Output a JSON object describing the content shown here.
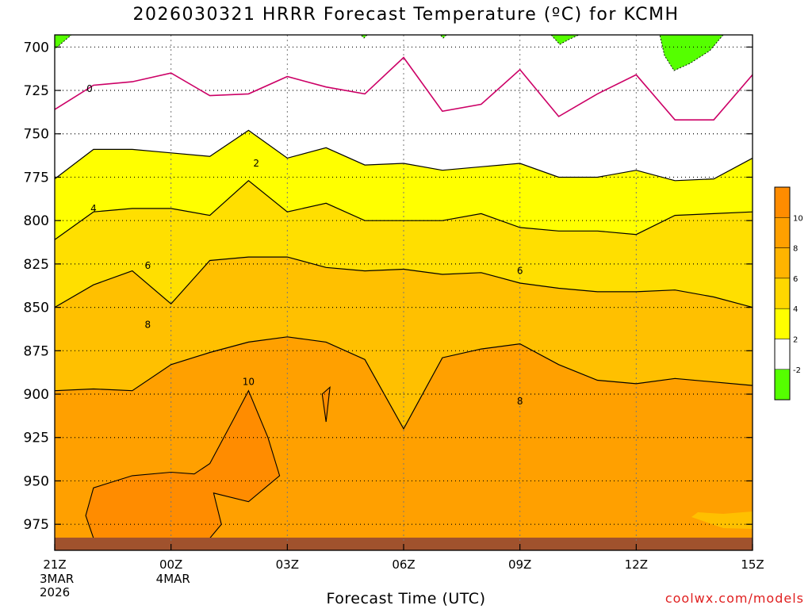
{
  "title": "2026030321 HRRR Forecast Temperature (ºC) for KCMH",
  "credit": "coolwx.com/models",
  "chart_data": {
    "type": "contour",
    "title": "2026030321 HRRR Forecast Temperature (ºC) for KCMH",
    "xlabel": "Forecast Time (UTC)",
    "ylabel": "",
    "x_ticks": [
      {
        "hour": 0,
        "label": "21Z",
        "sub": [
          "3MAR",
          "2026"
        ]
      },
      {
        "hour": 3,
        "label": "00Z",
        "sub": [
          "4MAR"
        ]
      },
      {
        "hour": 6,
        "label": "03Z",
        "sub": []
      },
      {
        "hour": 9,
        "label": "06Z",
        "sub": []
      },
      {
        "hour": 12,
        "label": "09Z",
        "sub": []
      },
      {
        "hour": 15,
        "label": "12Z",
        "sub": []
      },
      {
        "hour": 18,
        "label": "15Z",
        "sub": []
      }
    ],
    "y_ticks": [
      700,
      725,
      750,
      775,
      800,
      825,
      850,
      875,
      900,
      925,
      950,
      975
    ],
    "ylim": [
      990,
      693
    ],
    "xlim": [
      0,
      18
    ],
    "grid": true,
    "contour_levels": [
      -2,
      0,
      2,
      4,
      6,
      8,
      10
    ],
    "colorbar": {
      "labels": [
        "10",
        "8",
        "6",
        "4",
        "2",
        "-2"
      ],
      "colors": [
        "#ff8c00",
        "#ffa000",
        "#ffb400",
        "#ffd700",
        "#ffff00",
        "#ffffff",
        "#55ff00"
      ]
    },
    "colors": {
      "c_lt_neg2": "#55ff00",
      "c_neg2_0": "#ffffff",
      "c_0_2": "#ffffff",
      "c_2_4": "#ffff00",
      "c_4_6": "#ffdf00",
      "c_6_8": "#ffc000",
      "c_8_10": "#ffa000",
      "c_gt_10": "#ff8c00",
      "zero_line": "#cc0066",
      "ground": "#a0522d"
    },
    "isotherms": [
      {
        "level": 0,
        "label": "0",
        "label_at": [
          0.9,
          724
        ],
        "pressures": [
          736,
          722,
          720,
          715,
          728,
          727,
          717,
          723,
          727,
          706,
          737,
          733,
          713,
          740,
          727,
          716,
          742,
          742,
          716
        ]
      },
      {
        "level": 2,
        "label": "2",
        "label_at": [
          5.2,
          767
        ],
        "pressures": [
          776,
          759,
          759,
          761,
          763,
          748,
          764,
          758,
          768,
          767,
          771,
          769,
          767,
          775,
          775,
          771,
          777,
          776,
          764
        ]
      },
      {
        "level": 4,
        "label": "4",
        "label_at": [
          1.0,
          793
        ],
        "pressures": [
          811,
          795,
          793,
          793,
          797,
          777,
          795,
          790,
          800,
          800,
          800,
          796,
          804,
          806,
          806,
          808,
          797,
          796,
          795
        ]
      },
      {
        "level": 6,
        "label": "6",
        "label_at": [
          2.4,
          826
        ],
        "pressures": [
          850,
          837,
          829,
          848,
          823,
          821,
          821,
          827,
          829,
          828,
          831,
          830,
          836,
          839,
          841,
          841,
          840,
          844,
          850
        ]
      },
      {
        "level": 8,
        "label": "8",
        "label_at": [
          2.4,
          860
        ],
        "pressures": [
          898,
          897,
          898,
          883,
          876,
          870,
          867,
          870,
          880,
          920,
          879,
          874,
          871,
          883,
          892,
          894,
          891,
          893,
          895
        ]
      }
    ],
    "ten_contours": [
      {
        "label": "10",
        "pts": [
          [
            1.0,
            983
          ],
          [
            0.8,
            970
          ],
          [
            1.0,
            954
          ],
          [
            2.0,
            947
          ],
          [
            3.0,
            945
          ],
          [
            3.6,
            946
          ],
          [
            4.0,
            940
          ],
          [
            4.6,
            915
          ],
          [
            5.0,
            898
          ],
          [
            5.5,
            925
          ],
          [
            5.8,
            947
          ],
          [
            5.0,
            962
          ],
          [
            4.1,
            957
          ],
          [
            4.3,
            975
          ],
          [
            4.0,
            983
          ],
          [
            2.5,
            986
          ],
          [
            1.0,
            983
          ]
        ]
      },
      {
        "label": "",
        "pts": [
          [
            6.9,
            900
          ],
          [
            7.1,
            896
          ],
          [
            7.0,
            916
          ],
          [
            6.9,
            900
          ]
        ]
      }
    ],
    "series": []
  }
}
